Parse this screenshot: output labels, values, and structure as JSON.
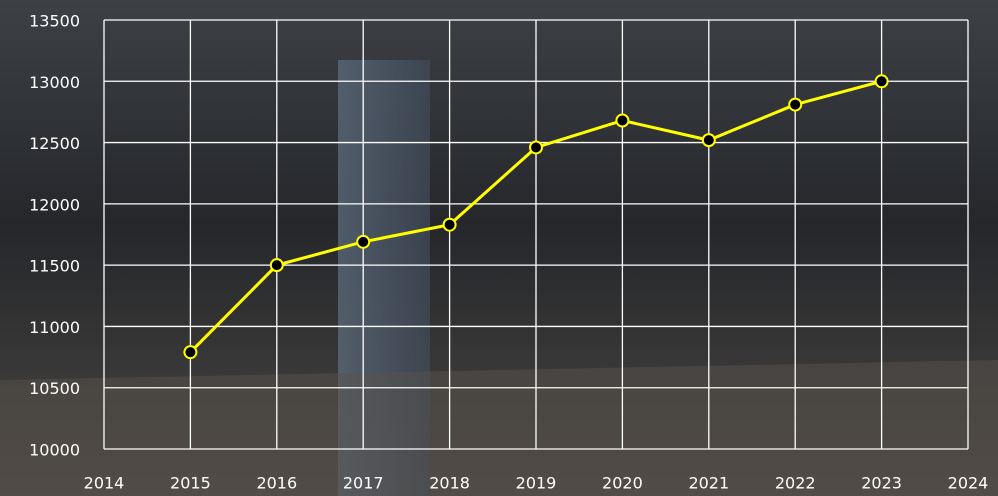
{
  "chart_data": {
    "type": "line",
    "x": [
      2015,
      2016,
      2017,
      2018,
      2019,
      2020,
      2021,
      2022,
      2023
    ],
    "series": [
      {
        "color": "#ffff00",
        "values": [
          10790,
          11500,
          11690,
          11830,
          12460,
          12680,
          12520,
          12810,
          13000
        ]
      }
    ],
    "xlim": [
      2014,
      2024
    ],
    "xticks": [
      2014,
      2015,
      2016,
      2017,
      2018,
      2019,
      2020,
      2021,
      2022,
      2023,
      2024
    ],
    "ylim": [
      10000,
      13500
    ],
    "yticks": [
      10000,
      10500,
      11000,
      11500,
      12000,
      12500,
      13000,
      13500
    ],
    "grid": true
  }
}
